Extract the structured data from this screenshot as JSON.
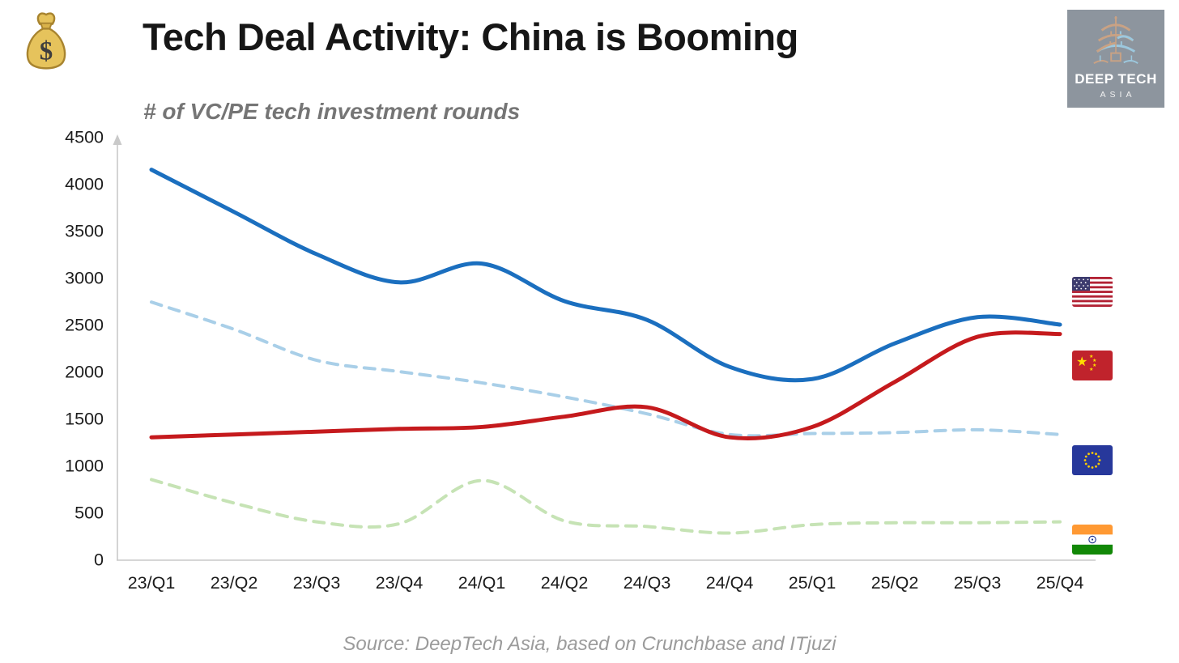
{
  "header": {
    "title": "Tech Deal Activity: China is Booming",
    "subtitle": "# of VC/PE tech investment rounds"
  },
  "logo": {
    "line1": "DEEP TECH",
    "line2": "ASIA",
    "bg_color": "#8D959E"
  },
  "footer": {
    "source": "Source: DeepTech Asia, based on Crunchbase and ITjuzi"
  },
  "icons": {
    "money_bag": "money-bag-icon",
    "pagoda": "pagoda-icon",
    "usa_flag": "usa-flag-icon",
    "china_flag": "china-flag-icon",
    "eu_flag": "eu-flag-icon",
    "india_flag": "india-flag-icon"
  },
  "chart_data": {
    "type": "line",
    "title": "Tech Deal Activity: China is Booming",
    "subtitle": "# of VC/PE tech investment rounds",
    "categories": [
      "23/Q1",
      "23/Q2",
      "23/Q3",
      "23/Q4",
      "24/Q1",
      "24/Q2",
      "24/Q3",
      "24/Q4",
      "25/Q1",
      "25/Q2",
      "25/Q3",
      "25/Q4"
    ],
    "series": [
      {
        "name": "USA",
        "flag": "usa-flag-icon",
        "color": "#1B6FBF",
        "line_style": "solid",
        "values": [
          4150,
          3700,
          3250,
          2950,
          3150,
          2750,
          2550,
          2050,
          1920,
          2300,
          2580,
          2500
        ]
      },
      {
        "name": "China",
        "flag": "china-flag-icon",
        "color": "#C51A1D",
        "line_style": "solid",
        "values": [
          1300,
          1330,
          1360,
          1390,
          1410,
          1520,
          1620,
          1300,
          1410,
          1890,
          2370,
          2400
        ]
      },
      {
        "name": "EU",
        "flag": "eu-flag-icon",
        "color": "#A9CFE8",
        "line_style": "dashed",
        "values": [
          2740,
          2450,
          2120,
          2000,
          1880,
          1730,
          1550,
          1330,
          1340,
          1350,
          1380,
          1330
        ]
      },
      {
        "name": "India",
        "flag": "india-flag-icon",
        "color": "#C6E3B5",
        "line_style": "dashed",
        "values": [
          850,
          600,
          400,
          380,
          840,
          410,
          350,
          280,
          370,
          390,
          390,
          400
        ]
      }
    ],
    "ylim": [
      0,
      4500
    ],
    "ytick_step": 500,
    "grid": false,
    "legend_position": "country flags at right edge aligned with line ends",
    "axis_color": "#C9C9C9",
    "tick_label_color": "#1C1C1C"
  }
}
